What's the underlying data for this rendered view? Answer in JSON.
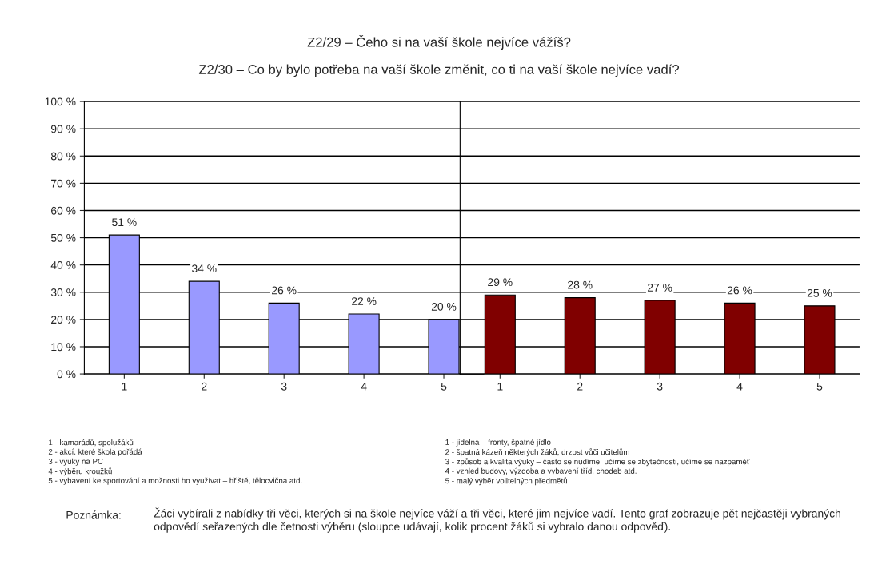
{
  "chart_data": [
    {
      "type": "bar",
      "title": "Z2/29 – Čeho si na vaší škole nejvíce vážíš?",
      "subtitle": "Z2/30 – Co by bylo potřeba na vaší škole změnit, co ti na vaší škole nejvíce vadí?",
      "categories": [
        "1",
        "2",
        "3",
        "4",
        "5"
      ],
      "values": [
        51,
        34,
        26,
        22,
        20
      ],
      "color": "#9999ff",
      "value_labels": [
        "51 %",
        "34 %",
        "26 %",
        "22 %",
        "20 %"
      ],
      "ylim": [
        0,
        100
      ],
      "yticks": [
        {
          "value": 0,
          "label": "0 %"
        },
        {
          "value": 10,
          "label": "10 %"
        },
        {
          "value": 20,
          "label": "20 %"
        },
        {
          "value": 30,
          "label": "30 %"
        },
        {
          "value": 40,
          "label": "40 %"
        },
        {
          "value": 50,
          "label": "50 %"
        },
        {
          "value": 60,
          "label": "60 %"
        },
        {
          "value": 70,
          "label": "70 %"
        },
        {
          "value": 80,
          "label": "80 %"
        },
        {
          "value": 90,
          "label": "90 %"
        },
        {
          "value": 100,
          "label": "100 %"
        }
      ],
      "grid": "y",
      "annotations": [
        "1 - kamarádů, spolužáků",
        "2 - akcí, které škola pořádá",
        "3 - výuky na PC",
        "4 - výběru kroužků",
        "5 - vybavení ke sportování a možnosti ho využívat – hřiště, tělocvična atd.",
        "Poznámka:",
        "Žáci vybírali z nabídky tři věci, kterých si na škole nejvíce váží a tři věci, které jim nejvíce vadí. Tento graf zobrazuje pět nejčastěji vybraných odpovědí seřazených dle četnosti výběru (sloupce udávají, kolik procent žáků si vybralo danou odpověď)."
      ]
    },
    {
      "type": "bar",
      "categories": [
        "1",
        "2",
        "3",
        "4",
        "5"
      ],
      "values": [
        29,
        28,
        27,
        26,
        25
      ],
      "color": "#800000",
      "value_labels": [
        "29 %",
        "28 %",
        "27 %",
        "26 %",
        "25 %"
      ],
      "ylim": [
        0,
        100
      ],
      "yticks": [
        {
          "value": 0,
          "label": null
        },
        {
          "value": 10,
          "label": null
        },
        {
          "value": 20,
          "label": null
        },
        {
          "value": 30,
          "label": null
        },
        {
          "value": 40,
          "label": null
        },
        {
          "value": 50,
          "label": null
        },
        {
          "value": 60,
          "label": null
        },
        {
          "value": 70,
          "label": null
        },
        {
          "value": 80,
          "label": null
        },
        {
          "value": 90,
          "label": null
        },
        {
          "value": 100,
          "label": null
        }
      ],
      "grid": "y",
      "tick_labels": "x",
      "annotations": [
        "1 - jídelna – fronty, špatné jídlo",
        "2 - špatná kázeň některých žáků, drzost vůči učitelům",
        "3 - způsob a kvalita výuky – často se nudíme, učíme se zbytečnosti, učíme se nazpaměť",
        "4 - vzhled budovy, výzdoba a vybavení tříd, chodeb atd.",
        "5 - malý výběr volitelných předmětů"
      ]
    }
  ]
}
